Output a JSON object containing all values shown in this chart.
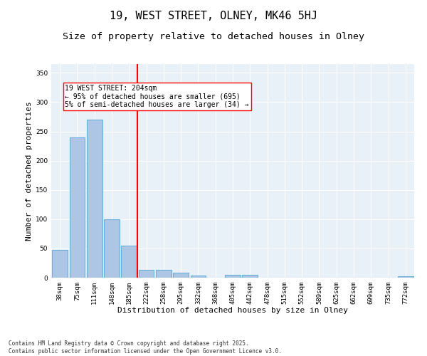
{
  "title": "19, WEST STREET, OLNEY, MK46 5HJ",
  "subtitle": "Size of property relative to detached houses in Olney",
  "xlabel": "Distribution of detached houses by size in Olney",
  "ylabel": "Number of detached properties",
  "categories": [
    "38sqm",
    "75sqm",
    "111sqm",
    "148sqm",
    "185sqm",
    "222sqm",
    "258sqm",
    "295sqm",
    "332sqm",
    "368sqm",
    "405sqm",
    "442sqm",
    "478sqm",
    "515sqm",
    "552sqm",
    "589sqm",
    "625sqm",
    "662sqm",
    "699sqm",
    "735sqm",
    "772sqm"
  ],
  "values": [
    48,
    240,
    270,
    100,
    55,
    13,
    13,
    8,
    4,
    0,
    5,
    5,
    0,
    0,
    0,
    0,
    0,
    0,
    0,
    0,
    3
  ],
  "bar_color": "#adc6e5",
  "bar_edge_color": "#6baed6",
  "bar_edge_width": 0.8,
  "vline_x": 4.5,
  "vline_color": "red",
  "annotation_text": "19 WEST STREET: 204sqm\n← 95% of detached houses are smaller (695)\n5% of semi-detached houses are larger (34) →",
  "annotation_box_color": "white",
  "annotation_box_edge_color": "red",
  "ylim": [
    0,
    365
  ],
  "yticks": [
    0,
    50,
    100,
    150,
    200,
    250,
    300,
    350
  ],
  "background_color": "#e8f0f8",
  "footer_text": "Contains HM Land Registry data © Crown copyright and database right 2025.\nContains public sector information licensed under the Open Government Licence v3.0.",
  "title_fontsize": 11,
  "subtitle_fontsize": 9.5,
  "label_fontsize": 8,
  "tick_fontsize": 6.5,
  "annotation_fontsize": 7,
  "footer_fontsize": 5.5
}
